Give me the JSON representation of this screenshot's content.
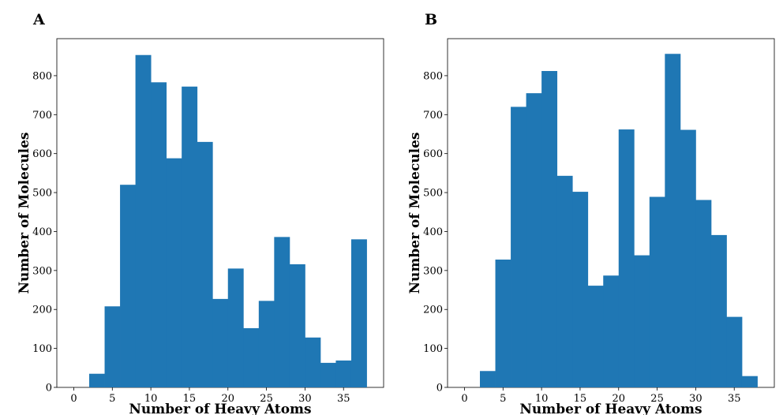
{
  "chart_data": [
    {
      "type": "bar",
      "panel_label": "A",
      "xlabel": "Number of Heavy Atoms",
      "ylabel": "Number of Molecules",
      "xlim": [
        -2.2,
        40.2
      ],
      "ylim": [
        0,
        895
      ],
      "xticks": [
        0,
        5,
        10,
        15,
        20,
        25,
        30,
        35
      ],
      "yticks": [
        0,
        100,
        200,
        300,
        400,
        500,
        600,
        700,
        800
      ],
      "bin_edges": [
        2,
        4,
        6,
        8,
        10,
        12,
        14,
        16,
        18,
        20,
        22,
        24,
        26,
        28,
        30,
        32,
        34,
        36,
        38
      ],
      "values": [
        35,
        208,
        520,
        853,
        783,
        588,
        772,
        630,
        227,
        305,
        152,
        222,
        386,
        316,
        128,
        63,
        69,
        380
      ],
      "color": "#1f77b4"
    },
    {
      "type": "bar",
      "panel_label": "B",
      "xlabel": "Number of Heavy Atoms",
      "ylabel": "Number of Molecules",
      "xlim": [
        -2.2,
        40.2
      ],
      "ylim": [
        0,
        895
      ],
      "xticks": [
        0,
        5,
        10,
        15,
        20,
        25,
        30,
        35
      ],
      "yticks": [
        0,
        100,
        200,
        300,
        400,
        500,
        600,
        700,
        800
      ],
      "bin_edges": [
        2,
        4,
        6,
        8,
        10,
        12,
        14,
        16,
        18,
        20,
        22,
        24,
        26,
        28,
        30,
        32,
        34,
        36,
        38
      ],
      "values": [
        42,
        328,
        720,
        755,
        812,
        543,
        502,
        261,
        287,
        662,
        339,
        489,
        856,
        661,
        481,
        391,
        181,
        29
      ],
      "color": "#1f77b4"
    }
  ]
}
